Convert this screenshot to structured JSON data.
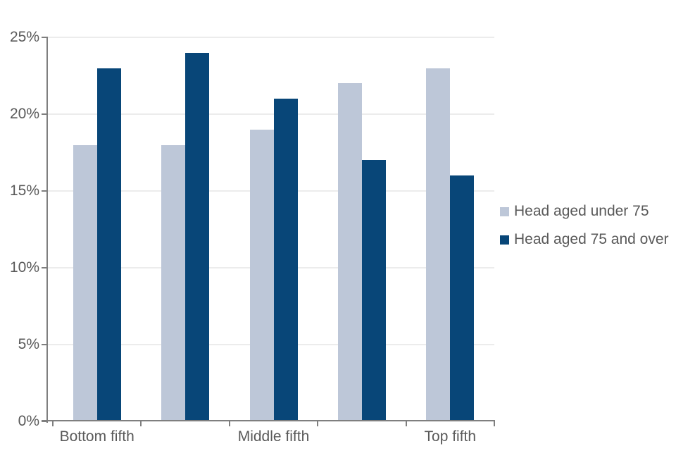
{
  "chart_data": {
    "type": "bar",
    "categories": [
      "Bottom fifth",
      "",
      "Middle fifth",
      "",
      "Top fifth"
    ],
    "series": [
      {
        "name": "Head aged under 75",
        "color": "#bdc7d8",
        "values": [
          18,
          18,
          19,
          22,
          23
        ]
      },
      {
        "name": "Head aged 75 and over",
        "color": "#084678",
        "values": [
          23,
          24,
          21,
          17,
          16
        ]
      }
    ],
    "y_ticks": [
      {
        "label": "0%",
        "value": 0
      },
      {
        "label": "5%",
        "value": 5
      },
      {
        "label": "10%",
        "value": 10
      },
      {
        "label": "15%",
        "value": 15
      },
      {
        "label": "20%",
        "value": 20
      },
      {
        "label": "25%",
        "value": 25
      }
    ],
    "ylim": [
      0,
      25
    ],
    "grid": true,
    "legend_position": "right",
    "colors": {
      "axis": "#7f7f7f",
      "gridline": "#ececec",
      "text": "#595959"
    }
  }
}
